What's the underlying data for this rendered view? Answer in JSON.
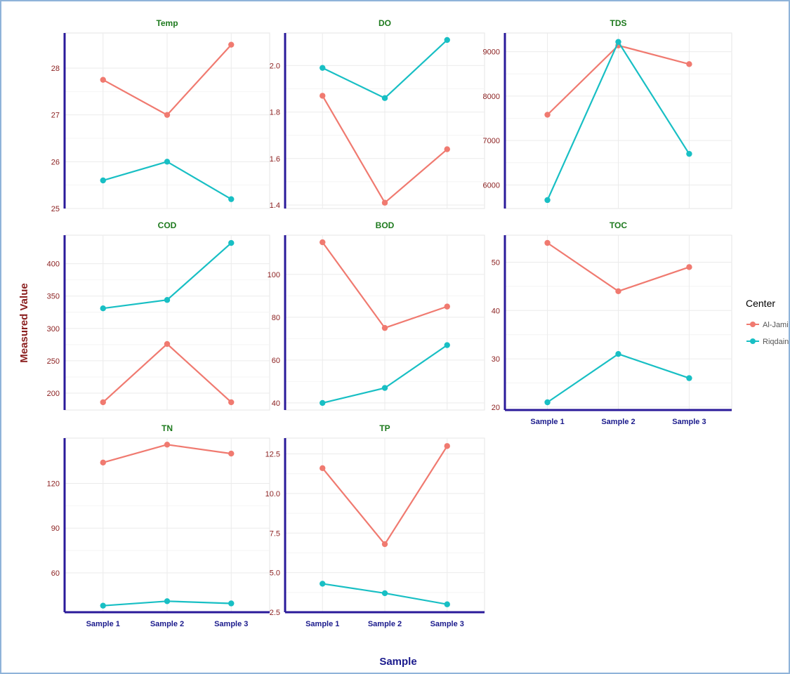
{
  "figure": {
    "y_label": "Measured Value",
    "x_label": "Sample",
    "legend_title": "Center",
    "legend_position": "right"
  },
  "colors": {
    "Al-Jamii": "#f07a70",
    "Riqdain": "#18bfc4",
    "panel_title": "#1e7a1e",
    "y_tick": "#8a1e1e",
    "x_tick": "#1a1a8c",
    "axis_line": "#2a1a9a",
    "grid": "#ebebeb",
    "figure_label": "#8a1e1e",
    "x_axis_label": "#1a1a8c"
  },
  "chart_data": [
    {
      "type": "line",
      "title": "Temp",
      "categories": [
        "Sample 1",
        "Sample 2",
        "Sample 3"
      ],
      "series": [
        {
          "name": "Al-Jamii",
          "values": [
            27.75,
            27.0,
            28.5
          ]
        },
        {
          "name": "Riqdain",
          "values": [
            25.6,
            26.0,
            25.2
          ]
        }
      ],
      "yticks": [
        "25",
        "26",
        "27",
        "28"
      ],
      "ylim": [
        25.0,
        28.75
      ],
      "show_x_ticks": false,
      "grid": true
    },
    {
      "type": "line",
      "title": "DO",
      "categories": [
        "Sample 1",
        "Sample 2",
        "Sample 3"
      ],
      "series": [
        {
          "name": "Al-Jamii",
          "values": [
            1.87,
            1.41,
            1.64
          ]
        },
        {
          "name": "Riqdain",
          "values": [
            1.99,
            1.86,
            2.11
          ]
        }
      ],
      "yticks": [
        "1.4",
        "1.6",
        "1.8",
        "2.0"
      ],
      "ylim": [
        1.385,
        2.14
      ],
      "show_x_ticks": false,
      "grid": true
    },
    {
      "type": "line",
      "title": "TDS",
      "categories": [
        "Sample 1",
        "Sample 2",
        "Sample 3"
      ],
      "series": [
        {
          "name": "Al-Jamii",
          "values": [
            7580,
            9140,
            8720
          ]
        },
        {
          "name": "Riqdain",
          "values": [
            5660,
            9220,
            6700
          ]
        }
      ],
      "yticks": [
        "6000",
        "7000",
        "8000",
        "9000"
      ],
      "ylim": [
        5470,
        9420
      ],
      "show_x_ticks": false,
      "grid": true
    },
    {
      "type": "line",
      "title": "COD",
      "categories": [
        "Sample 1",
        "Sample 2",
        "Sample 3"
      ],
      "series": [
        {
          "name": "Al-Jamii",
          "values": [
            186,
            276,
            186
          ]
        },
        {
          "name": "Riqdain",
          "values": [
            331,
            344,
            432
          ]
        }
      ],
      "yticks": [
        "200",
        "250",
        "300",
        "350",
        "400"
      ],
      "ylim": [
        174,
        444
      ],
      "show_x_ticks": false,
      "grid": true
    },
    {
      "type": "line",
      "title": "BOD",
      "categories": [
        "Sample 1",
        "Sample 2",
        "Sample 3"
      ],
      "series": [
        {
          "name": "Al-Jamii",
          "values": [
            115,
            75,
            85
          ]
        },
        {
          "name": "Riqdain",
          "values": [
            40,
            47,
            67
          ]
        }
      ],
      "yticks": [
        "40",
        "60",
        "80",
        "100"
      ],
      "ylim": [
        36.7,
        118.3
      ],
      "show_x_ticks": false,
      "grid": true
    },
    {
      "type": "line",
      "title": "TOC",
      "categories": [
        "Sample 1",
        "Sample 2",
        "Sample 3"
      ],
      "series": [
        {
          "name": "Al-Jamii",
          "values": [
            54,
            44,
            49
          ]
        },
        {
          "name": "Riqdain",
          "values": [
            21,
            31,
            26
          ]
        }
      ],
      "yticks": [
        "20",
        "30",
        "40",
        "50"
      ],
      "ylim": [
        19.4,
        55.6
      ],
      "show_x_ticks": true,
      "grid": true
    },
    {
      "type": "line",
      "title": "TN",
      "categories": [
        "Sample 1",
        "Sample 2",
        "Sample 3"
      ],
      "series": [
        {
          "name": "Al-Jamii",
          "values": [
            134,
            146,
            140
          ]
        },
        {
          "name": "Riqdain",
          "values": [
            38,
            41,
            39.5
          ]
        }
      ],
      "yticks": [
        "60",
        "90",
        "120"
      ],
      "ylim": [
        33.6,
        150.4
      ],
      "show_x_ticks": true,
      "grid": true
    },
    {
      "type": "line",
      "title": "TP",
      "categories": [
        "Sample 1",
        "Sample 2",
        "Sample 3"
      ],
      "series": [
        {
          "name": "Al-Jamii",
          "values": [
            11.6,
            6.8,
            13.0
          ]
        },
        {
          "name": "Riqdain",
          "values": [
            4.3,
            3.7,
            3.0
          ]
        }
      ],
      "yticks": [
        "2.5",
        "5.0",
        "7.5",
        "10.0",
        "12.5"
      ],
      "ylim": [
        2.5,
        13.5
      ],
      "show_x_ticks": true,
      "grid": true
    }
  ]
}
